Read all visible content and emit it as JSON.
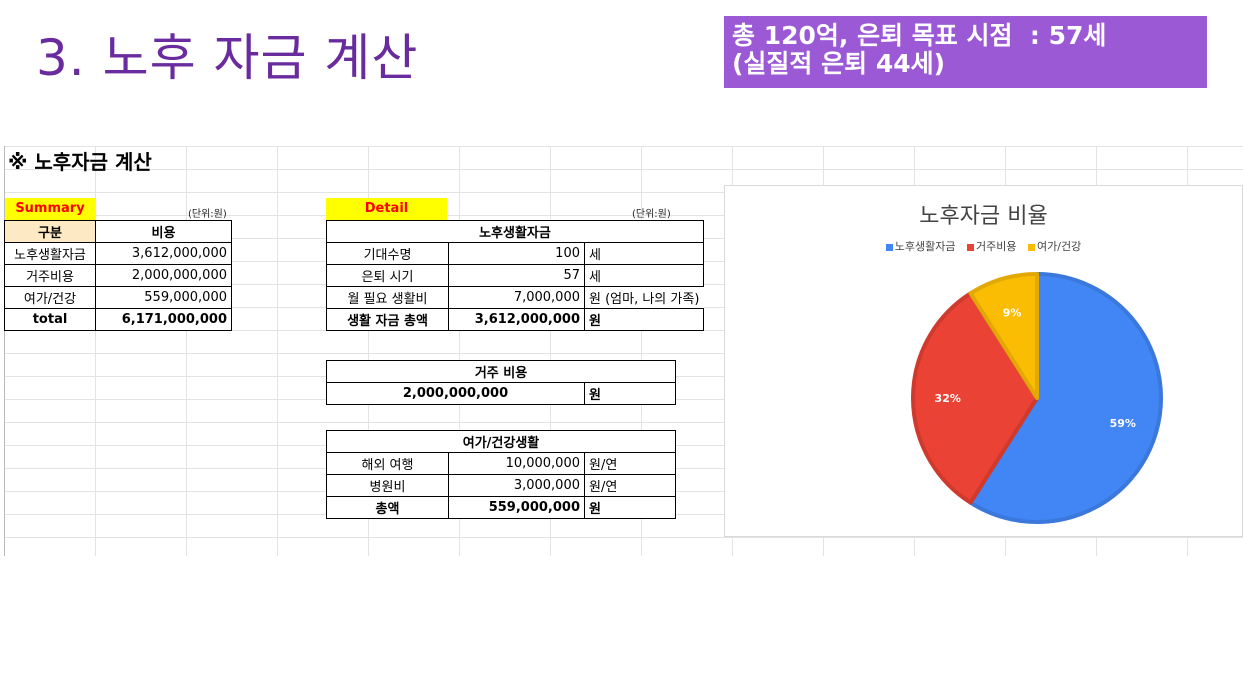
{
  "slide": {
    "title": "3. 노후 자금 계산",
    "callout_line1": "총 120억, 은퇴 목표 시점  : 57세",
    "callout_line2": "(실질적 은퇴 44세)"
  },
  "sheet": {
    "section_title": "※ 노후자금 계산",
    "summary": {
      "tag": "Summary",
      "unit_note": "(단위:원)",
      "headers": [
        "구분",
        "비용"
      ],
      "rows": [
        {
          "label": "노후생활자금",
          "value": "3,612,000,000"
        },
        {
          "label": "거주비용",
          "value": "2,000,000,000"
        },
        {
          "label": "여가/건강",
          "value": "559,000,000"
        }
      ],
      "total_label": "total",
      "total_value": "6,171,000,000"
    },
    "detail": {
      "tag": "Detail",
      "unit_note": "(단위:원)",
      "living": {
        "header": "노후생활자금",
        "rows": [
          {
            "label": "기대수명",
            "value": "100",
            "unit": "세"
          },
          {
            "label": "은퇴 시기",
            "value": "57",
            "unit": "세"
          },
          {
            "label": "월 필요 생활비",
            "value": "7,000,000",
            "unit": "원 (엄마, 나의 가족)"
          }
        ],
        "total_label": "생활 자금 총액",
        "total_value": "3,612,000,000",
        "total_unit": "원"
      },
      "housing": {
        "header": "거주 비용",
        "value": "2,000,000,000",
        "unit": "원"
      },
      "leisure": {
        "header": "여가/건강생활",
        "rows": [
          {
            "label": "해외 여행",
            "value": "10,000,000",
            "unit": "원/연"
          },
          {
            "label": "병원비",
            "value": "3,000,000",
            "unit": "원/연"
          }
        ],
        "total_label": "총액",
        "total_value": "559,000,000",
        "total_unit": "원"
      }
    }
  },
  "chart_data": {
    "type": "pie",
    "title": "노후자금 비율",
    "legend_position": "top",
    "categories": [
      "노후생활자금",
      "거주비용",
      "여가/건강"
    ],
    "values": [
      59,
      32,
      9
    ],
    "labels": [
      "59%",
      "32%",
      "9%"
    ],
    "colors": [
      "#4285f4",
      "#ea4335",
      "#fbbc04"
    ],
    "border_colors": [
      "#3b78db",
      "#d03a2d",
      "#e2a804"
    ]
  }
}
